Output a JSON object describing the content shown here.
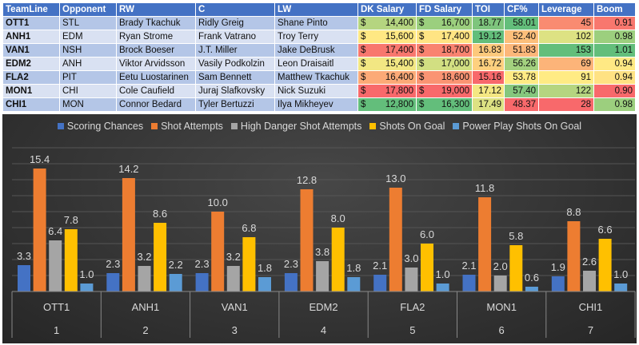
{
  "table": {
    "headers": [
      "TeamLine",
      "Opponent",
      "RW",
      "C",
      "LW",
      "DK Salary",
      "FD Salary",
      "TOI",
      "CF%",
      "Leverage",
      "Boom"
    ],
    "currency": "$",
    "rows": [
      {
        "teamline": "OTT1",
        "opponent": "STL",
        "rw": "Brady Tkachuk",
        "c": "Ridly Greig",
        "lw": "Shane Pinto",
        "dk": "14,400",
        "fd": "16,700",
        "toi": "18.77",
        "cf": "58.01",
        "leverage": "45",
        "boom": "0.91",
        "colors": [
          "#b5d580",
          "#9bcf7e",
          "#7ec57d",
          "#63be7b",
          "#f98b71",
          "#f8776e"
        ]
      },
      {
        "teamline": "ANH1",
        "opponent": "EDM",
        "rw": "Ryan Strome",
        "c": "Frank Vatrano",
        "lw": "Troy Terry",
        "dk": "15,600",
        "fd": "17,400",
        "toi": "19.12",
        "cf": "52.40",
        "leverage": "102",
        "boom": "0.98",
        "colors": [
          "#ffe883",
          "#ffe483",
          "#63be7b",
          "#fcbf7b",
          "#dde283",
          "#9ccf7e"
        ]
      },
      {
        "teamline": "VAN1",
        "opponent": "NSH",
        "rw": "Brock Boeser",
        "c": "J.T. Miller",
        "lw": "Jake DeBrusk",
        "dk": "17,400",
        "fd": "18,700",
        "toi": "16.83",
        "cf": "51.83",
        "leverage": "153",
        "boom": "1.01",
        "colors": [
          "#f8776e",
          "#f98370",
          "#fdc97c",
          "#fcb77a",
          "#63be7b",
          "#63be7b"
        ]
      },
      {
        "teamline": "EDM2",
        "opponent": "ANH",
        "rw": "Viktor Arvidsson",
        "c": "Vasily Podkolzin",
        "lw": "Leon Draisaitl",
        "dk": "15,400",
        "fd": "17,000",
        "toi": "16.72",
        "cf": "56.26",
        "leverage": "69",
        "boom": "0.94",
        "colors": [
          "#f2e783",
          "#d2df82",
          "#fed07f",
          "#a3d17f",
          "#fcb479",
          "#ffe984"
        ]
      },
      {
        "teamline": "FLA2",
        "opponent": "PIT",
        "rw": "Eetu Luostarinen",
        "c": "Sam Bennett",
        "lw": "Matthew Tkachuk",
        "dk": "16,400",
        "fd": "18,600",
        "toi": "15.16",
        "cf": "53.78",
        "leverage": "91",
        "boom": "0.94",
        "colors": [
          "#fcaa77",
          "#fa9473",
          "#f8696b",
          "#ffeb84",
          "#ffeb84",
          "#ffe283"
        ]
      },
      {
        "teamline": "MON1",
        "opponent": "CHI",
        "rw": "Cole Caufield",
        "c": "Juraj Slafkovsky",
        "lw": "Nick Suzuki",
        "dk": "17,800",
        "fd": "19,000",
        "toi": "17.12",
        "cf": "57.40",
        "leverage": "122",
        "boom": "0.90",
        "colors": [
          "#f8696b",
          "#f8696b",
          "#f4e783",
          "#85c77d",
          "#b5d580",
          "#f8696b"
        ]
      },
      {
        "teamline": "CHI1",
        "opponent": "MON",
        "rw": "Connor Bedard",
        "c": "Tyler Bertuzzi",
        "lw": "Ilya Mikheyev",
        "dk": "12,800",
        "fd": "16,300",
        "toi": "17.49",
        "cf": "48.37",
        "leverage": "28",
        "boom": "0.98",
        "colors": [
          "#63be7b",
          "#63be7b",
          "#dde283",
          "#f8696b",
          "#f8696b",
          "#9ccf7e"
        ]
      }
    ]
  },
  "chart_data": {
    "type": "bar",
    "categories": [
      "OTT1",
      "ANH1",
      "VAN1",
      "EDM2",
      "FLA2",
      "MON1",
      "CHI1"
    ],
    "category_index": [
      "1",
      "2",
      "3",
      "4",
      "5",
      "6",
      "7"
    ],
    "ylim": [
      0,
      18
    ],
    "grid": true,
    "legend": "top",
    "series": [
      {
        "name": "Scoring Chances",
        "color": "#4472c4",
        "values": [
          3.3,
          2.3,
          2.3,
          2.3,
          2.1,
          2.1,
          1.9
        ]
      },
      {
        "name": "Shot Attempts",
        "color": "#ed7d31",
        "values": [
          15.4,
          14.2,
          10.0,
          12.8,
          13.0,
          11.8,
          8.8
        ]
      },
      {
        "name": "High Danger Shot Attempts",
        "color": "#a5a5a5",
        "values": [
          6.4,
          3.2,
          3.2,
          3.8,
          3.0,
          2.0,
          2.6
        ]
      },
      {
        "name": "Shots On Goal",
        "color": "#ffc000",
        "values": [
          7.8,
          8.6,
          6.8,
          8.0,
          6.0,
          5.8,
          6.6
        ]
      },
      {
        "name": "Power Play Shots On Goal",
        "color": "#5b9bd5",
        "values": [
          1.0,
          2.2,
          1.8,
          1.8,
          1.0,
          0.6,
          1.0
        ]
      }
    ]
  }
}
